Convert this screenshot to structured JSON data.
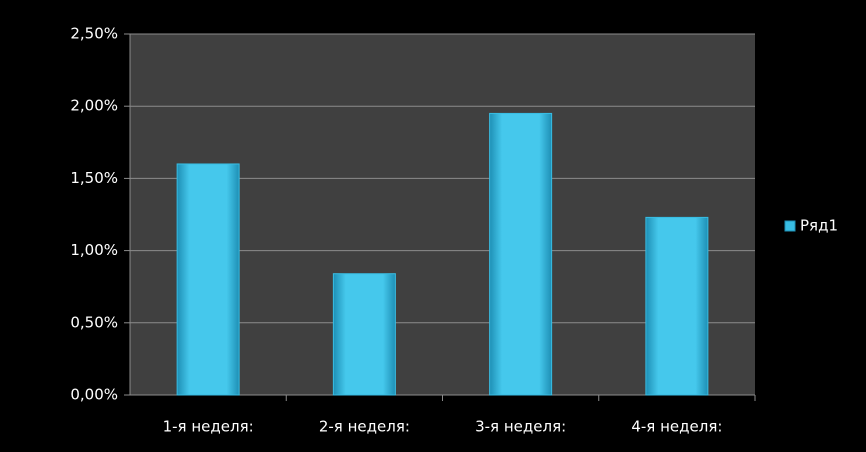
{
  "chart_data": {
    "type": "bar",
    "categories": [
      "1-я неделя:",
      "2-я неделя:",
      "3-я неделя:",
      "4-я неделя:"
    ],
    "series": [
      {
        "name": "Ряд1",
        "color": "#38bde3",
        "values": [
          1.6,
          0.84,
          1.95,
          1.23
        ]
      }
    ],
    "ylim": [
      0,
      2.5
    ],
    "yticks": [
      {
        "value": 0,
        "label": "0,00%"
      },
      {
        "value": 0.5,
        "label": "0,50%"
      },
      {
        "value": 1,
        "label": "1,00%"
      },
      {
        "value": 1.5,
        "label": "1,50%"
      },
      {
        "value": 2,
        "label": "2,00%"
      },
      {
        "value": 2.5,
        "label": "2,50%"
      }
    ],
    "grid": true,
    "legend": "right"
  }
}
